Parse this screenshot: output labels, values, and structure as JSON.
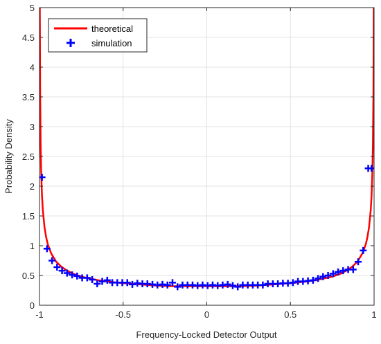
{
  "chart_data": {
    "type": "line",
    "xlabel": "Frequency-Locked Detector Output",
    "ylabel": "Probability Density",
    "xlim": [
      -1,
      1
    ],
    "ylim": [
      0,
      5
    ],
    "xticks": [
      -1,
      -0.5,
      0,
      0.5,
      1
    ],
    "xtick_labels": [
      "-1",
      "-0.5",
      "0",
      "0.5",
      "1"
    ],
    "yticks": [
      0,
      0.5,
      1,
      1.5,
      2,
      2.5,
      3,
      3.5,
      4,
      4.5,
      5
    ],
    "ytick_labels": [
      "0",
      "0.5",
      "1",
      "1.5",
      "2",
      "2.5",
      "3",
      "3.5",
      "4",
      "4.5",
      "5"
    ],
    "grid": true,
    "legend_position": "top-left",
    "series": [
      {
        "name": "theoretical",
        "style": "line",
        "color": "#ff0000",
        "x": [
          -0.999,
          -0.998,
          -0.996,
          -0.993,
          -0.99,
          -0.985,
          -0.98,
          -0.97,
          -0.96,
          -0.95,
          -0.93,
          -0.9,
          -0.87,
          -0.84,
          -0.8,
          -0.75,
          -0.7,
          -0.65,
          -0.6,
          -0.5,
          -0.4,
          -0.3,
          -0.2,
          -0.1,
          0,
          0.1,
          0.2,
          0.3,
          0.4,
          0.5,
          0.6,
          0.65,
          0.7,
          0.75,
          0.8,
          0.84,
          0.87,
          0.9,
          0.93,
          0.95,
          0.96,
          0.97,
          0.98,
          0.985,
          0.99,
          0.993,
          0.996,
          0.998,
          0.999
        ],
        "y": [
          7.12,
          5.03,
          3.56,
          2.69,
          2.25,
          1.84,
          1.6,
          1.31,
          1.14,
          1.02,
          0.87,
          0.73,
          0.65,
          0.59,
          0.53,
          0.48,
          0.45,
          0.42,
          0.4,
          0.37,
          0.35,
          0.33,
          0.32,
          0.32,
          0.32,
          0.32,
          0.32,
          0.33,
          0.35,
          0.37,
          0.4,
          0.42,
          0.45,
          0.48,
          0.53,
          0.59,
          0.65,
          0.73,
          0.87,
          1.02,
          1.14,
          1.31,
          1.6,
          1.84,
          2.25,
          2.69,
          3.56,
          5.03,
          7.12
        ]
      },
      {
        "name": "simulation",
        "style": "marker",
        "marker": "+",
        "color": "#0000ff",
        "x": [
          -0.985,
          -0.955,
          -0.925,
          -0.895,
          -0.865,
          -0.835,
          -0.805,
          -0.775,
          -0.745,
          -0.715,
          -0.685,
          -0.655,
          -0.625,
          -0.595,
          -0.565,
          -0.535,
          -0.505,
          -0.475,
          -0.445,
          -0.415,
          -0.385,
          -0.355,
          -0.325,
          -0.295,
          -0.265,
          -0.235,
          -0.205,
          -0.175,
          -0.145,
          -0.115,
          -0.085,
          -0.055,
          -0.025,
          0.005,
          0.035,
          0.065,
          0.095,
          0.125,
          0.155,
          0.185,
          0.215,
          0.245,
          0.275,
          0.305,
          0.335,
          0.365,
          0.395,
          0.425,
          0.455,
          0.485,
          0.515,
          0.545,
          0.575,
          0.605,
          0.635,
          0.665,
          0.695,
          0.725,
          0.755,
          0.785,
          0.815,
          0.845,
          0.875,
          0.905,
          0.935,
          0.965,
          0.985
        ],
        "y": [
          2.15,
          0.95,
          0.75,
          0.64,
          0.58,
          0.54,
          0.51,
          0.49,
          0.46,
          0.46,
          0.43,
          0.36,
          0.4,
          0.42,
          0.38,
          0.38,
          0.38,
          0.38,
          0.35,
          0.37,
          0.36,
          0.36,
          0.35,
          0.34,
          0.35,
          0.34,
          0.38,
          0.31,
          0.34,
          0.34,
          0.34,
          0.33,
          0.34,
          0.33,
          0.34,
          0.33,
          0.34,
          0.35,
          0.33,
          0.31,
          0.34,
          0.34,
          0.34,
          0.34,
          0.34,
          0.36,
          0.36,
          0.36,
          0.37,
          0.37,
          0.38,
          0.4,
          0.4,
          0.41,
          0.42,
          0.45,
          0.48,
          0.5,
          0.53,
          0.56,
          0.58,
          0.6,
          0.6,
          0.73,
          0.92,
          2.3,
          2.3
        ]
      }
    ]
  }
}
